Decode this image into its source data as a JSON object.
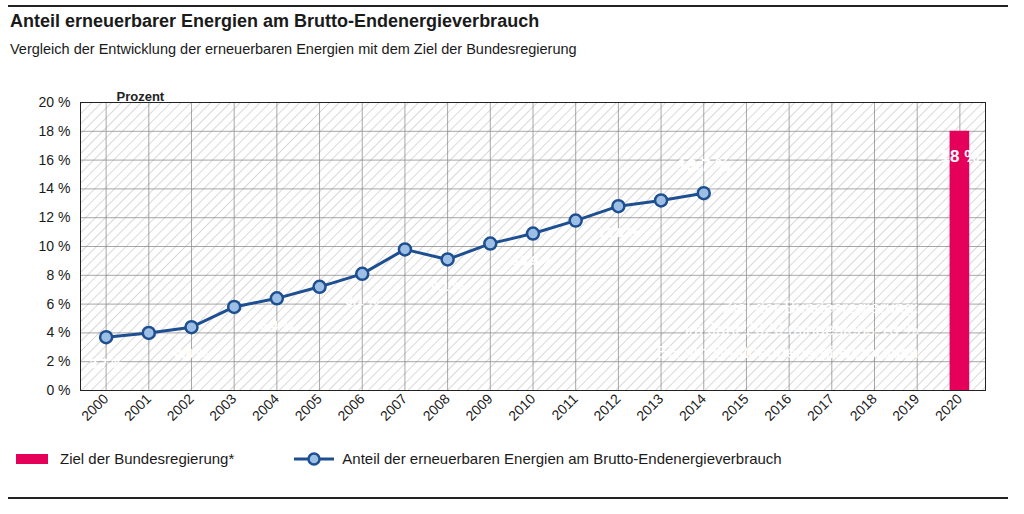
{
  "chart_data": {
    "type": "line",
    "title": "Anteil erneuerbarer Energien am Brutto-Endenergieverbrauch",
    "subtitle": "Vergleich der Entwicklung der erneuerbaren Energien mit dem Ziel der Bundesregierung",
    "ylabel": "Prozent",
    "annotation": "Ziel der Bundesregierung:\nim Jahr 2020 mindestens 18 %\nEE am Bruttoendenergieverbrauch",
    "categories": [
      "2000",
      "2001",
      "2002",
      "2003",
      "2004",
      "2005",
      "2006",
      "2007",
      "2008",
      "2009",
      "2010",
      "2011",
      "2012",
      "2013",
      "2014",
      "2015",
      "2016",
      "2017",
      "2018",
      "2019",
      "2020"
    ],
    "series": [
      {
        "name": "Ziel der Bundesregierung*",
        "type": "bar",
        "color": "#e5005a",
        "values": [
          null,
          null,
          null,
          null,
          null,
          null,
          null,
          null,
          null,
          null,
          null,
          null,
          null,
          null,
          null,
          null,
          null,
          null,
          null,
          null,
          18
        ],
        "value_labels": [
          null,
          null,
          null,
          null,
          null,
          null,
          null,
          null,
          null,
          null,
          null,
          null,
          null,
          null,
          null,
          null,
          null,
          null,
          null,
          null,
          "18 %"
        ]
      },
      {
        "name": "Anteil der erneuerbaren Energien am Brutto-Endenergieverbrauch",
        "type": "line",
        "color": "#1d4f91",
        "marker": "circle",
        "values": [
          3.7,
          4.0,
          4.4,
          5.8,
          6.4,
          7.2,
          8.1,
          9.8,
          9.1,
          10.2,
          10.9,
          11.8,
          12.8,
          13.2,
          13.7,
          null,
          null,
          null,
          null,
          null,
          null
        ],
        "value_labels": [
          "3,7 %",
          null,
          "4,4 %",
          null,
          "6,4 %",
          null,
          "8,1 %",
          null,
          "9,1 %",
          null,
          "10,9 %",
          null,
          "12,8 %",
          null,
          "13,7 %",
          null,
          null,
          null,
          null,
          null,
          null
        ]
      }
    ],
    "ylim": [
      0,
      20
    ],
    "yticks": [
      {
        "value": 0,
        "label": "0 %"
      },
      {
        "value": 2,
        "label": "2 %"
      },
      {
        "value": 4,
        "label": "4 %"
      },
      {
        "value": 6,
        "label": "6 %"
      },
      {
        "value": 8,
        "label": "8 %"
      },
      {
        "value": 10,
        "label": "10 %"
      },
      {
        "value": 12,
        "label": "12 %"
      },
      {
        "value": 14,
        "label": "14 %"
      },
      {
        "value": 16,
        "label": "16 %"
      },
      {
        "value": 18,
        "label": "18 %"
      },
      {
        "value": 20,
        "label": "20 %"
      }
    ],
    "grid": true,
    "legend": "bottom",
    "data_labels": true
  }
}
